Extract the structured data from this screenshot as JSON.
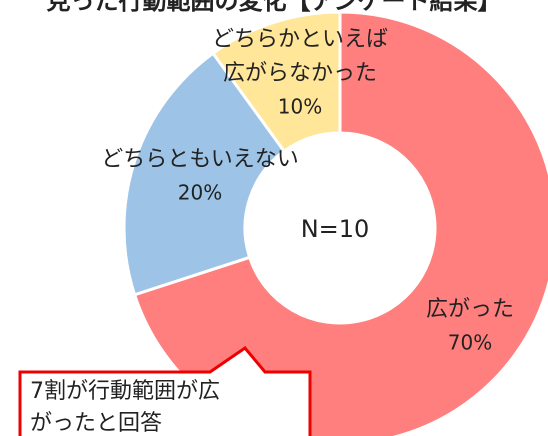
{
  "chart_data": {
    "type": "donut",
    "title": "見った行動範囲の変化【アンケート結果】",
    "categories": [
      [
        "広がった"
      ],
      [
        "どちらともいえない"
      ],
      [
        "どちらかといえば",
        "広がらなかった"
      ]
    ],
    "values": [
      70,
      20,
      10
    ],
    "value_labels": [
      "70%",
      "20%",
      "10%"
    ],
    "colors": [
      "#ff7f7f",
      "#9dc3e6",
      "#ffe699"
    ],
    "center_label": "N=10",
    "annotation": [
      "7割が行動範囲が広",
      "がったと回答"
    ]
  }
}
